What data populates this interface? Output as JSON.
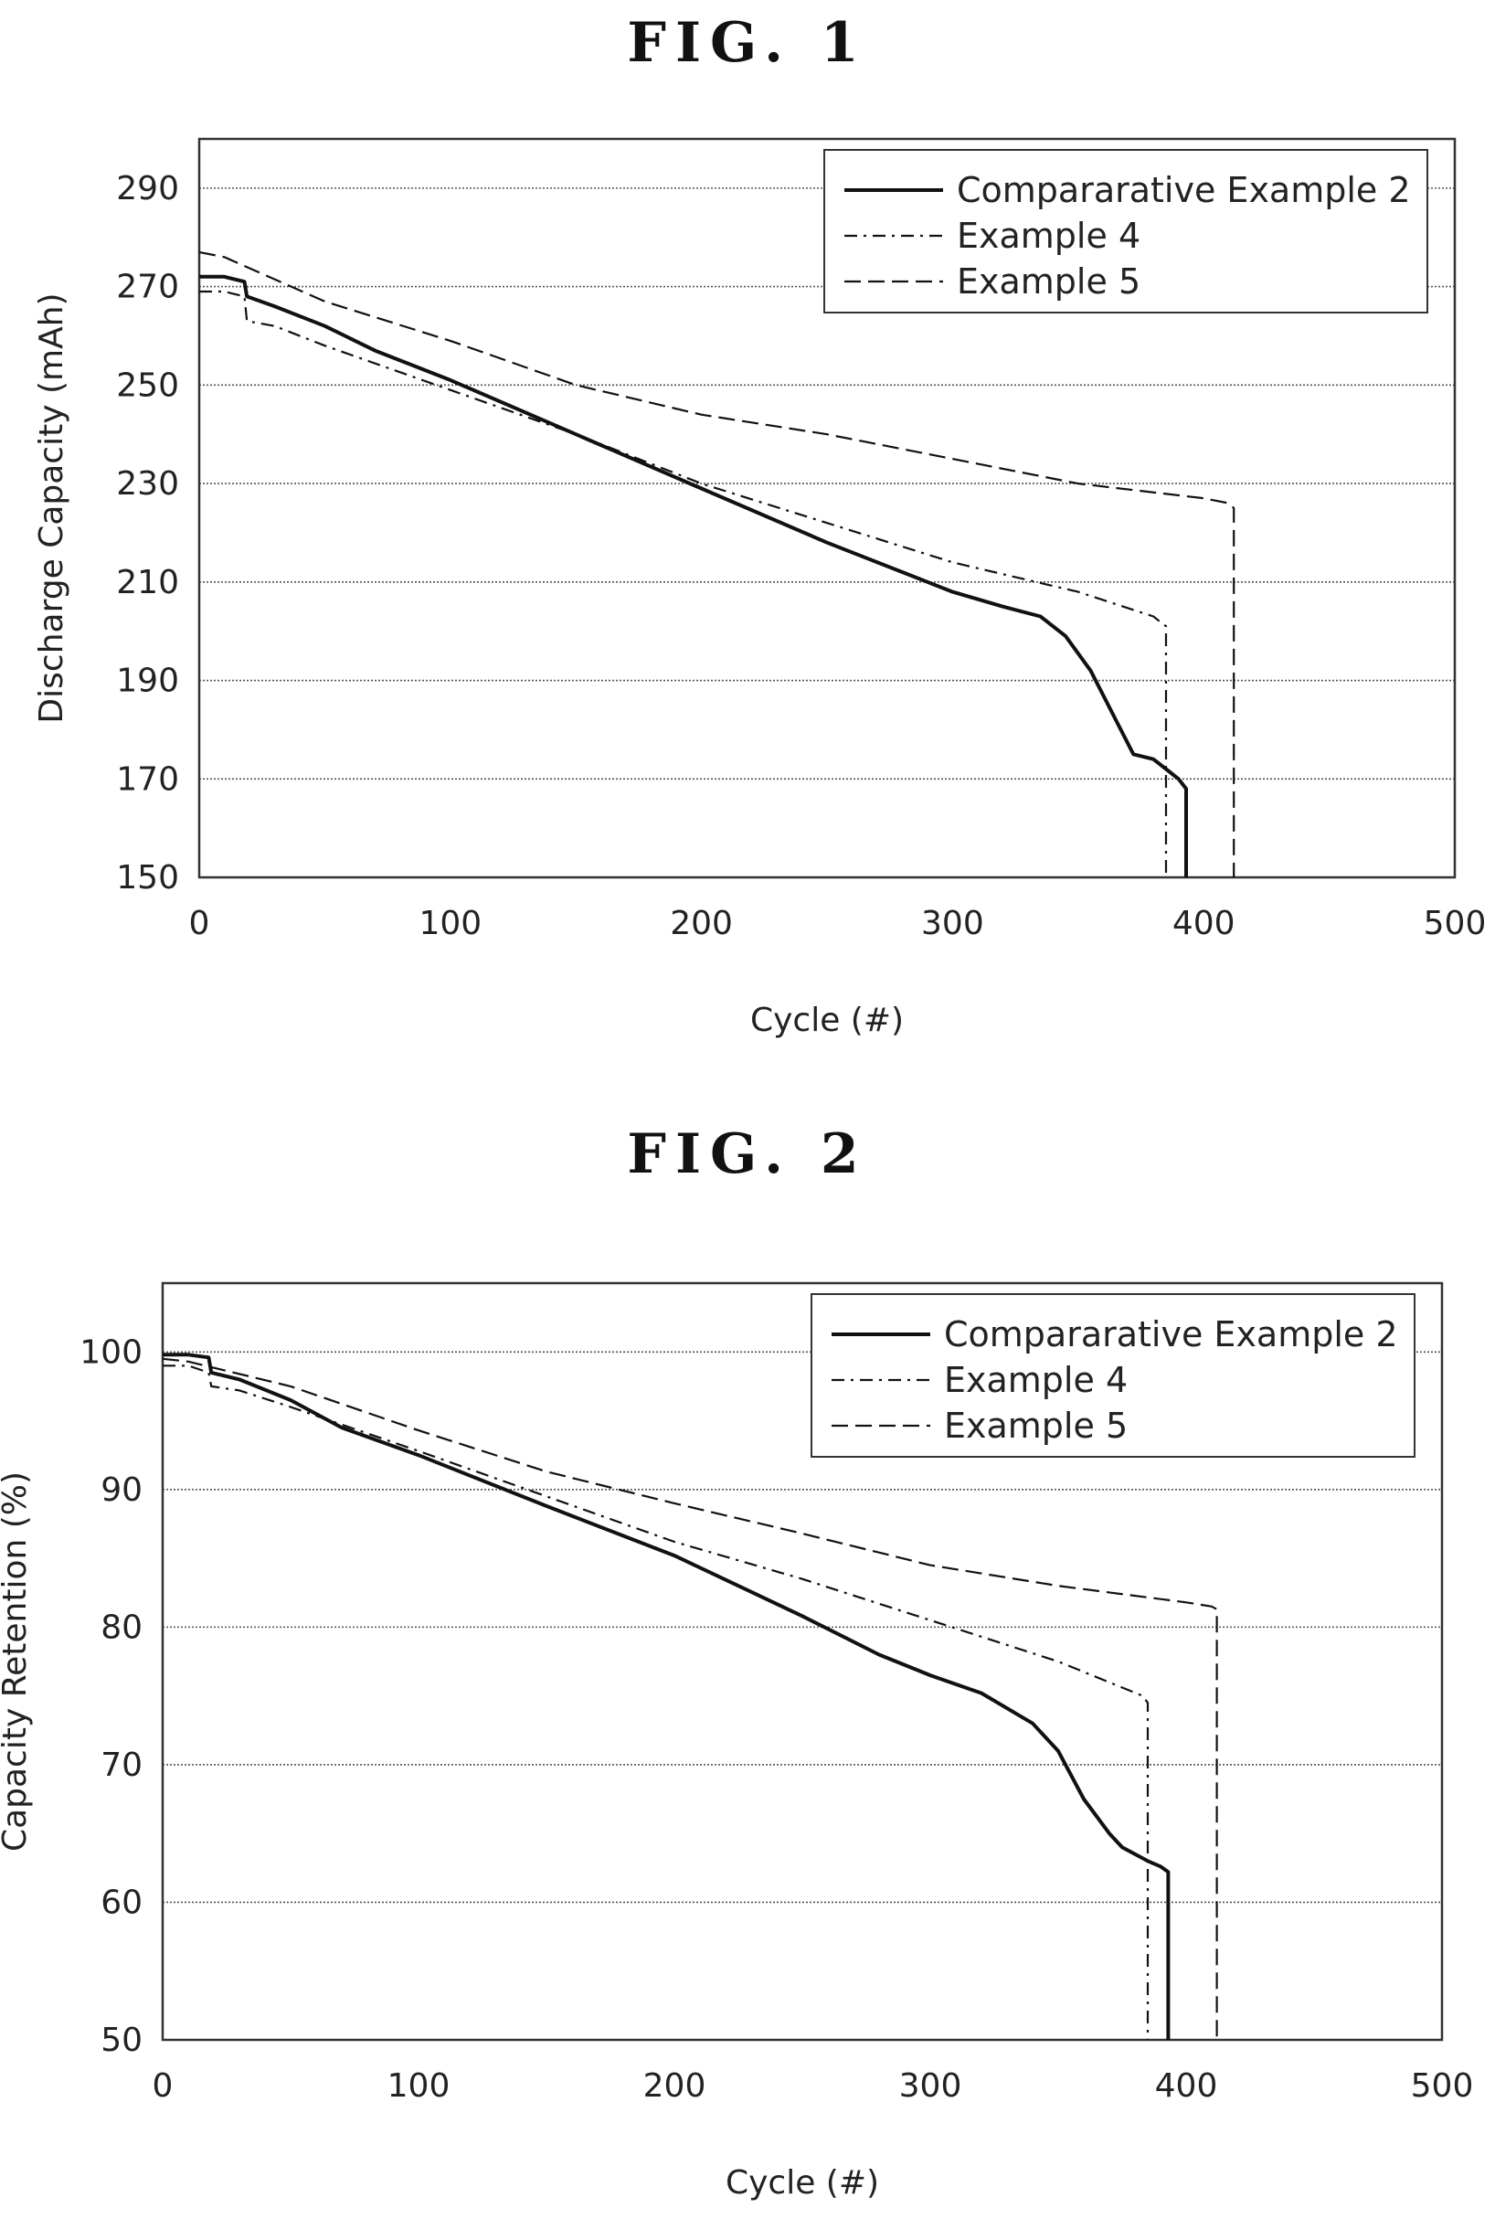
{
  "figures": [
    {
      "title": "FIG. 1"
    },
    {
      "title": "FIG. 2"
    }
  ],
  "chart_data": [
    {
      "type": "line",
      "title": "FIG. 1",
      "xlabel": "Cycle (#)",
      "ylabel": "Discharge Capacity (mAh)",
      "xlim": [
        0,
        500
      ],
      "ylim": [
        150,
        300
      ],
      "xticks": [
        "0",
        "100",
        "200",
        "300",
        "400",
        "500"
      ],
      "yticks": [
        "150",
        "170",
        "190",
        "210",
        "230",
        "250",
        "270",
        "290"
      ],
      "grid": true,
      "legend_position": "top-right",
      "series": [
        {
          "name": "Compararative Example 2",
          "style": "solid",
          "x": [
            0,
            10,
            18,
            19,
            30,
            50,
            70,
            100,
            150,
            200,
            250,
            280,
            300,
            320,
            335,
            345,
            355,
            365,
            372,
            380,
            385,
            390,
            393,
            393
          ],
          "y": [
            272,
            272,
            271,
            268,
            266,
            262,
            257,
            251,
            240,
            229,
            218,
            212,
            208,
            205,
            203,
            199,
            192,
            182,
            175,
            174,
            172,
            170,
            168,
            150
          ]
        },
        {
          "name": "Example 4",
          "style": "dashdot",
          "x": [
            0,
            10,
            18,
            19,
            30,
            50,
            100,
            150,
            200,
            250,
            300,
            350,
            380,
            385,
            385
          ],
          "y": [
            269,
            269,
            268,
            263,
            262,
            258,
            249,
            240,
            230,
            222,
            214,
            208,
            203,
            201,
            150
          ]
        },
        {
          "name": "Example 5",
          "style": "dashed",
          "x": [
            0,
            10,
            50,
            100,
            150,
            200,
            250,
            300,
            350,
            400,
            410,
            412,
            412
          ],
          "y": [
            277,
            276,
            267,
            259,
            250,
            244,
            240,
            235,
            230,
            227,
            226,
            225,
            150
          ]
        }
      ]
    },
    {
      "type": "line",
      "title": "FIG. 2",
      "xlabel": "Cycle (#)",
      "ylabel": "Capacity Retention (%)",
      "xlim": [
        0,
        500
      ],
      "ylim": [
        50,
        105
      ],
      "xticks": [
        "0",
        "100",
        "200",
        "300",
        "400",
        "500"
      ],
      "yticks": [
        "50",
        "60",
        "70",
        "80",
        "90",
        "100"
      ],
      "grid": true,
      "legend_position": "top-right",
      "series": [
        {
          "name": "Compararative Example 2",
          "style": "solid",
          "x": [
            0,
            10,
            18,
            19,
            30,
            50,
            70,
            100,
            150,
            200,
            225,
            250,
            280,
            300,
            320,
            340,
            350,
            360,
            370,
            375,
            385,
            390,
            393,
            393
          ],
          "y": [
            99.8,
            99.8,
            99.6,
            98.5,
            98,
            96.5,
            94.5,
            92.5,
            88.8,
            85.2,
            83,
            80.8,
            78,
            76.5,
            75.2,
            73,
            71,
            67.5,
            65,
            64,
            63,
            62.6,
            62.2,
            50
          ]
        },
        {
          "name": "Example 4",
          "style": "dashdot",
          "x": [
            0,
            10,
            18,
            19,
            30,
            50,
            100,
            150,
            200,
            250,
            300,
            350,
            383,
            385,
            385
          ],
          "y": [
            99,
            99,
            98.5,
            97.5,
            97.2,
            96,
            92.8,
            89.5,
            86.2,
            83.5,
            80.5,
            77.5,
            75,
            74.5,
            50
          ]
        },
        {
          "name": "Example 5",
          "style": "dashed",
          "x": [
            0,
            10,
            50,
            100,
            150,
            200,
            250,
            300,
            350,
            400,
            410,
            412,
            412
          ],
          "y": [
            99.5,
            99.3,
            97.5,
            94.3,
            91.3,
            89,
            86.8,
            84.5,
            83,
            81.8,
            81.5,
            81.3,
            50
          ]
        }
      ]
    }
  ]
}
